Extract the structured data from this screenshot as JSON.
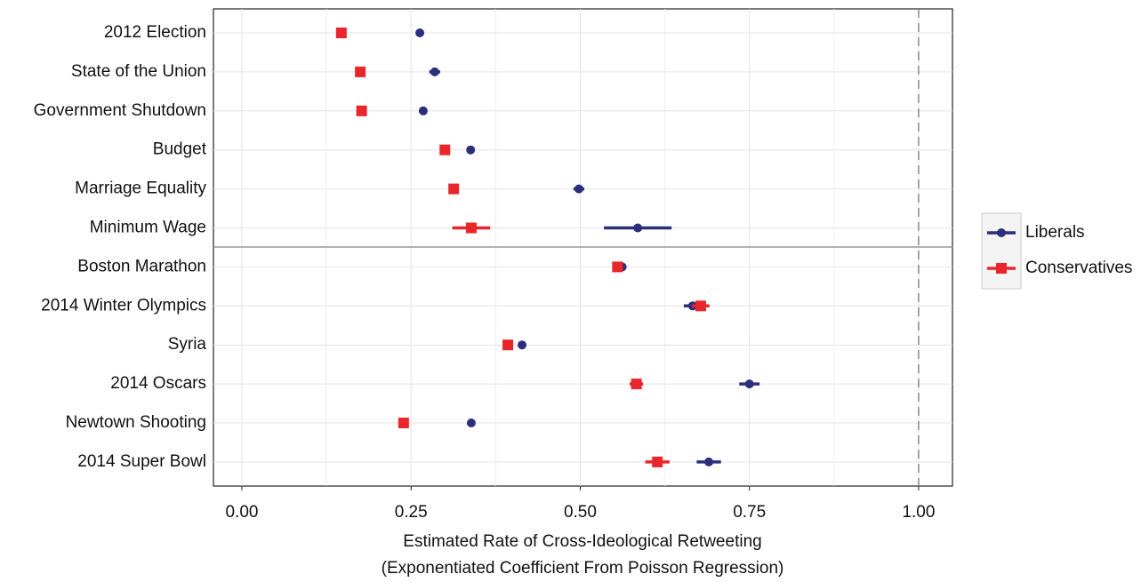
{
  "chart_data": {
    "type": "dot-errorbar",
    "xlabel": [
      "Estimated Rate of Cross-Ideological Retweeting",
      "(Exponentiated Coefficient From Poisson Regression)"
    ],
    "categories": [
      "2012 Election",
      "State of the Union",
      "Government Shutdown",
      "Budget",
      "Marriage Equality",
      "Minimum Wage",
      "Boston Marathon",
      "2014 Winter Olympics",
      "Syria",
      "2014 Oscars",
      "Newtown Shooting",
      "2014 Super Bowl"
    ],
    "series": [
      {
        "name": "Liberals",
        "color": "#2b2f7c",
        "marker": "circle",
        "values": [
          0.263,
          0.285,
          0.268,
          0.338,
          0.498,
          0.585,
          0.562,
          0.666,
          0.414,
          0.75,
          0.339,
          0.69
        ],
        "errors": [
          0.004,
          0.008,
          0.004,
          0.004,
          0.008,
          0.05,
          0.005,
          0.013,
          0.004,
          0.015,
          0.003,
          0.018
        ]
      },
      {
        "name": "Conservatives",
        "color": "#e8262b",
        "marker": "square",
        "values": [
          0.147,
          0.175,
          0.177,
          0.3,
          0.313,
          0.339,
          0.555,
          0.678,
          0.393,
          0.583,
          0.239,
          0.614
        ],
        "errors": [
          0.004,
          0.004,
          0.004,
          0.004,
          0.005,
          0.028,
          0.004,
          0.013,
          0.004,
          0.01,
          0.004,
          0.018
        ]
      }
    ],
    "xlim": [
      -0.042,
      1.05
    ],
    "xticks": [
      {
        "value": 0,
        "label": "0.00"
      },
      {
        "value": 0.25,
        "label": "0.25"
      },
      {
        "value": 0.5,
        "label": "0.50"
      },
      {
        "value": 0.75,
        "label": "0.75"
      },
      {
        "value": 1,
        "label": "1.00"
      }
    ],
    "reference_line": 1,
    "grid": true,
    "legend": "right"
  }
}
